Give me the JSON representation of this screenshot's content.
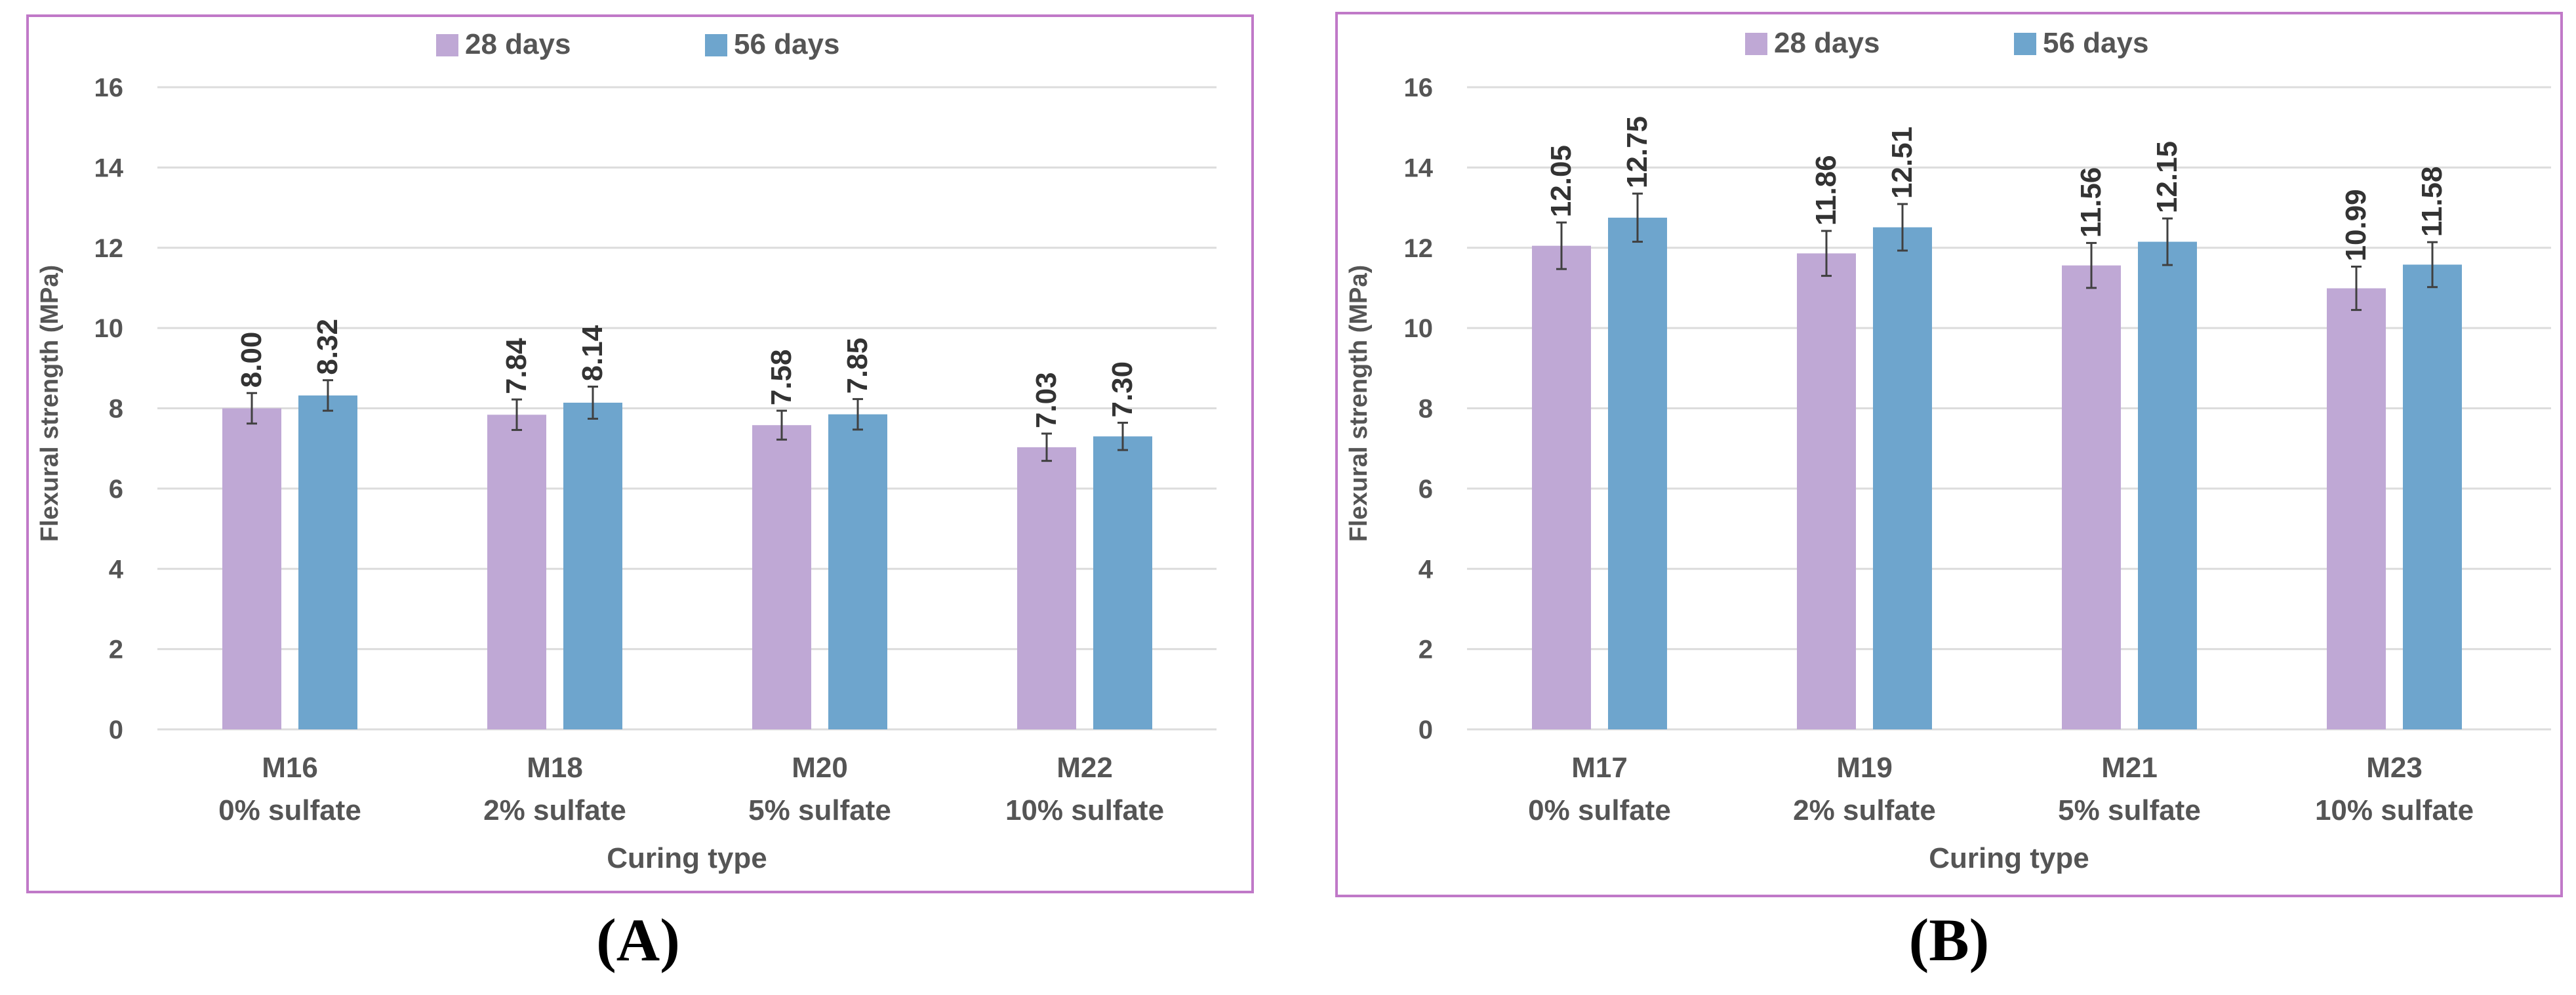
{
  "colors": {
    "series_28": "#bfa8d5",
    "series_56": "#6ea5cd",
    "frame": "#c079c8",
    "grid": "#dcdcdc",
    "text": "#555555",
    "error_bar": "#404040"
  },
  "panel_labels": [
    "(A)",
    "(B)"
  ],
  "chart_data": [
    {
      "type": "bar",
      "panel": "(A)",
      "categories": [
        [
          "M16",
          "0% sulfate"
        ],
        [
          "M18",
          "2% sulfate"
        ],
        [
          "M20",
          "5% sulfate"
        ],
        [
          "M22",
          "10% sulfate"
        ]
      ],
      "series": [
        {
          "name": "28 days",
          "values": [
            8.0,
            7.84,
            7.58,
            7.03
          ],
          "labels": [
            "8.00",
            "7.84",
            "7.58",
            "7.03"
          ],
          "errors": [
            0.38,
            0.38,
            0.36,
            0.34
          ]
        },
        {
          "name": "56 days",
          "values": [
            8.32,
            8.14,
            7.85,
            7.3
          ],
          "labels": [
            "8.32",
            "8.14",
            "7.85",
            "7.30"
          ],
          "errors": [
            0.38,
            0.4,
            0.38,
            0.34
          ]
        }
      ],
      "title": "",
      "xlabel": "Curing type",
      "ylabel": "Flexural  strength (MPa)",
      "ylim": [
        0,
        16
      ],
      "yticks": [
        0,
        2,
        4,
        6,
        8,
        10,
        12,
        14,
        16
      ],
      "grid": true,
      "legend_position": "top-center"
    },
    {
      "type": "bar",
      "panel": "(B)",
      "categories": [
        [
          "M17",
          "0% sulfate"
        ],
        [
          "M19",
          "2% sulfate"
        ],
        [
          "M21",
          "5% sulfate"
        ],
        [
          "M23",
          "10% sulfate"
        ]
      ],
      "series": [
        {
          "name": "28 days",
          "values": [
            12.05,
            11.86,
            11.56,
            10.99
          ],
          "labels": [
            "12.05",
            "11.86",
            "11.56",
            "10.99"
          ],
          "errors": [
            0.58,
            0.56,
            0.56,
            0.54
          ]
        },
        {
          "name": "56 days",
          "values": [
            12.75,
            12.51,
            12.15,
            11.58
          ],
          "labels": [
            "12.75",
            "12.51",
            "12.15",
            "11.58"
          ],
          "errors": [
            0.6,
            0.58,
            0.58,
            0.56
          ]
        }
      ],
      "title": "",
      "xlabel": "Curing type",
      "ylabel": "Flexural  strength (MPa)",
      "ylim": [
        0,
        16
      ],
      "yticks": [
        0,
        2,
        4,
        6,
        8,
        10,
        12,
        14,
        16
      ],
      "grid": true,
      "legend_position": "top-center"
    }
  ]
}
